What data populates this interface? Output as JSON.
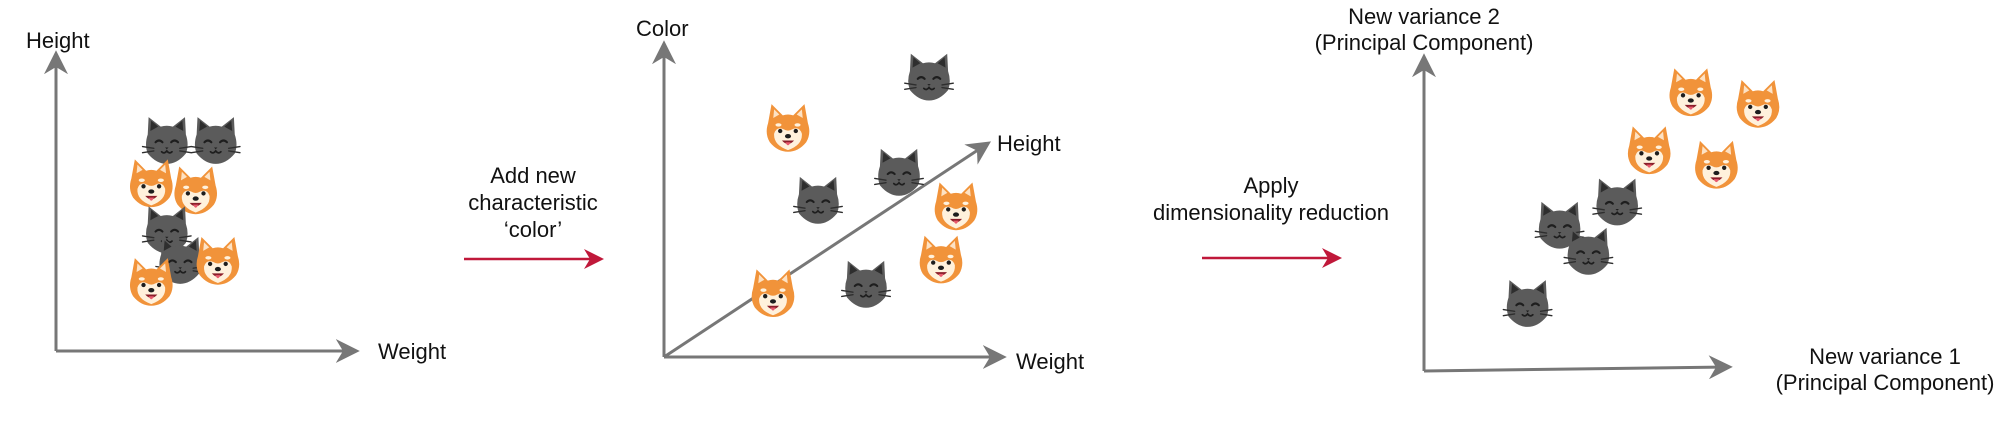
{
  "colors": {
    "axis": "#777777",
    "arrow": "#c0183a",
    "cat_fur": "#5b5b5b",
    "cat_dark": "#2e2e2e",
    "dog_fur": "#f1933a",
    "dog_light": "#fff1dc",
    "tongue": "#e85a6e"
  },
  "icons": {
    "cat": "cat-face-icon",
    "dog": "shiba-dog-face-icon"
  },
  "panels": [
    {
      "name": "panel-original-2d",
      "axis_labels": {
        "y": "Height",
        "x": "Weight"
      },
      "animals": [
        {
          "type": "cat",
          "weight": 2.2,
          "height": 7.6
        },
        {
          "type": "cat",
          "weight": 4.4,
          "height": 7.6
        },
        {
          "type": "dog",
          "weight": 1.5,
          "height": 5.8
        },
        {
          "type": "dog",
          "weight": 3.5,
          "height": 5.5
        },
        {
          "type": "cat",
          "weight": 2.2,
          "height": 3.8
        },
        {
          "type": "cat",
          "weight": 2.8,
          "height": 2.5
        },
        {
          "type": "dog",
          "weight": 4.5,
          "height": 2.5
        },
        {
          "type": "dog",
          "weight": 1.5,
          "height": 1.6
        }
      ]
    },
    {
      "name": "panel-added-dimension-3d",
      "axis_labels": {
        "y": "Color",
        "x": "Weight",
        "z": "Height"
      },
      "animals": [
        {
          "type": "cat",
          "weight": 7.5,
          "color": 9.0
        },
        {
          "type": "dog",
          "weight": 2.8,
          "color": 7.2
        },
        {
          "type": "cat",
          "weight": 6.5,
          "color": 5.6
        },
        {
          "type": "cat",
          "weight": 3.8,
          "color": 4.6
        },
        {
          "type": "dog",
          "weight": 8.4,
          "color": 4.4
        },
        {
          "type": "dog",
          "weight": 7.9,
          "color": 2.5
        },
        {
          "type": "cat",
          "weight": 5.4,
          "color": 1.6
        },
        {
          "type": "dog",
          "weight": 2.3,
          "color": 1.3
        }
      ]
    },
    {
      "name": "panel-reduced-principal-components",
      "axis_labels": {
        "y_line1": "New variance 2",
        "y_line2": "(Principal Component)",
        "x_line1": "New variance 1",
        "x_line2": "(Principal Component)"
      },
      "animals": [
        {
          "type": "dog",
          "pc1": 6.9,
          "pc2": 8.7
        },
        {
          "type": "dog",
          "pc1": 9.0,
          "pc2": 8.3
        },
        {
          "type": "dog",
          "pc1": 5.6,
          "pc2": 6.7
        },
        {
          "type": "dog",
          "pc1": 7.7,
          "pc2": 6.2
        },
        {
          "type": "cat",
          "pc1": 4.6,
          "pc2": 4.9
        },
        {
          "type": "cat",
          "pc1": 2.8,
          "pc2": 4.1
        },
        {
          "type": "cat",
          "pc1": 3.7,
          "pc2": 3.2
        },
        {
          "type": "cat",
          "pc1": 1.8,
          "pc2": 1.4
        }
      ]
    }
  ],
  "transitions": [
    {
      "name": "transition-add-color",
      "lines": [
        "Add new",
        "characteristic",
        "‘color’"
      ]
    },
    {
      "name": "transition-apply-reduction",
      "lines": [
        "Apply",
        "dimensionality reduction"
      ]
    }
  ]
}
